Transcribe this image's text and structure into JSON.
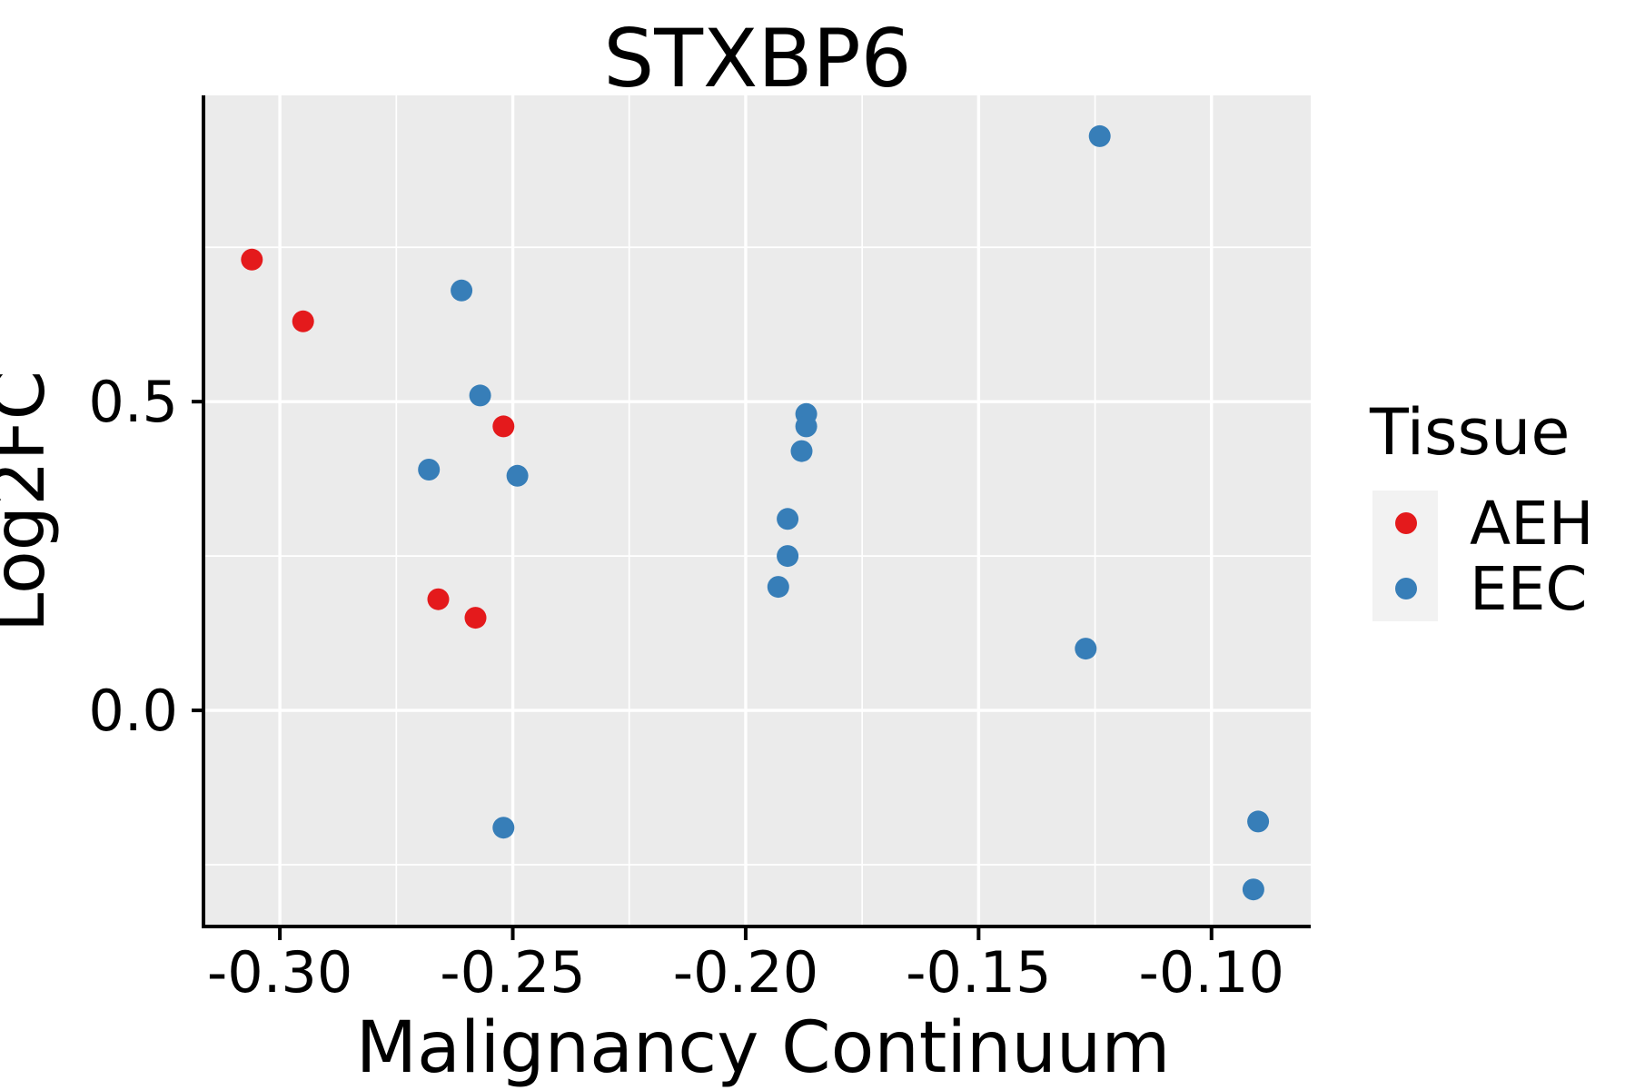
{
  "title": "STXBP6",
  "axes": {
    "x": {
      "label": "Malignancy Continuum",
      "ticks": [
        {
          "value": -0.3,
          "label": "-0.30"
        },
        {
          "value": -0.25,
          "label": "-0.25"
        },
        {
          "value": -0.2,
          "label": "-0.20"
        },
        {
          "value": -0.15,
          "label": "-0.15"
        },
        {
          "value": -0.1,
          "label": "-0.10"
        }
      ],
      "minor_ticks": [
        -0.275,
        -0.225,
        -0.175,
        -0.125
      ]
    },
    "y": {
      "label": "Log2FC",
      "ticks": [
        {
          "value": 0.0,
          "label": "0.0"
        },
        {
          "value": 0.5,
          "label": "0.5"
        }
      ],
      "minor_ticks": [
        -0.25,
        0.25,
        0.75
      ]
    }
  },
  "legend": {
    "title": "Tissue",
    "entries": [
      {
        "label": "AEH",
        "color": "#E41A1C"
      },
      {
        "label": "EEC",
        "color": "#377EB8"
      }
    ]
  },
  "colors": {
    "panel_bg": "#EBEBEB",
    "grid": "#FFFFFF",
    "axis": "#000000",
    "legend_key_bg": "#F2F2F2",
    "aeh": "#E41A1C",
    "eec": "#377EB8",
    "page_bg": "#FFFFFF"
  },
  "chart_data": {
    "type": "scatter",
    "title": "STXBP6",
    "xlabel": "Malignancy Continuum",
    "ylabel": "Log2FC",
    "xlim": [
      -0.3164,
      -0.0787
    ],
    "ylim": [
      -0.35,
      0.996
    ],
    "grid": "on",
    "legend_position": "right",
    "series": [
      {
        "name": "AEH",
        "color": "#E41A1C",
        "points": [
          [
            -0.306,
            0.73
          ],
          [
            -0.295,
            0.63
          ],
          [
            -0.252,
            0.46
          ],
          [
            -0.266,
            0.18
          ],
          [
            -0.258,
            0.15
          ]
        ]
      },
      {
        "name": "EEC",
        "color": "#377EB8",
        "points": [
          [
            -0.261,
            0.68
          ],
          [
            -0.257,
            0.51
          ],
          [
            -0.268,
            0.39
          ],
          [
            -0.249,
            0.38
          ],
          [
            -0.252,
            -0.19
          ],
          [
            -0.187,
            0.48
          ],
          [
            -0.187,
            0.46
          ],
          [
            -0.188,
            0.42
          ],
          [
            -0.191,
            0.31
          ],
          [
            -0.191,
            0.25
          ],
          [
            -0.193,
            0.2
          ],
          [
            -0.124,
            0.93
          ],
          [
            -0.127,
            0.1
          ],
          [
            -0.09,
            -0.18
          ],
          [
            -0.091,
            -0.29
          ]
        ]
      }
    ]
  }
}
